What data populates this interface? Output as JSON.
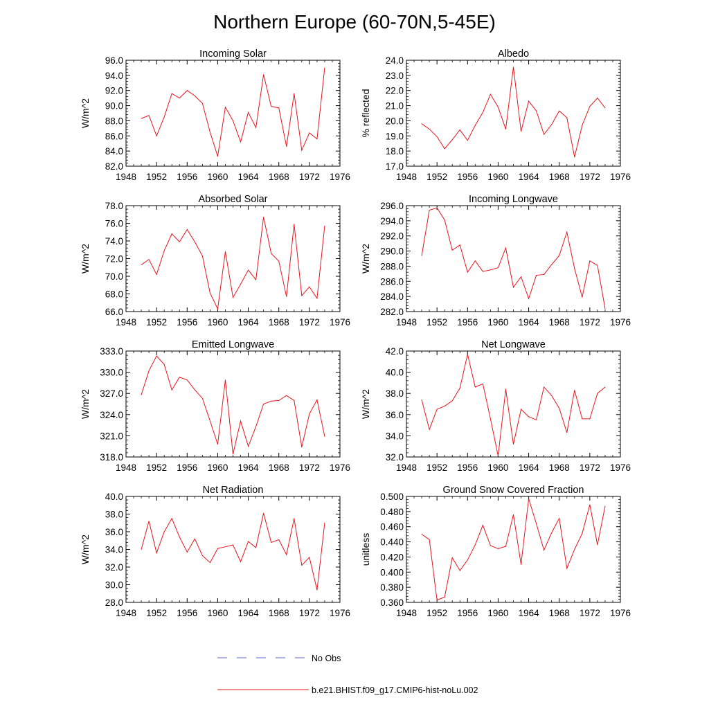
{
  "figure": {
    "title": "Northern Europe (60-70N,5-45E)"
  },
  "legend": {
    "items": [
      {
        "label": "No Obs",
        "color": "#5566cc",
        "style": "dashed"
      },
      {
        "label": "b.e21.BHIST.f09_g17.CMIP6-hist-noLu.002",
        "color": "#e8141e",
        "style": "solid"
      }
    ]
  },
  "chart_data": [
    {
      "type": "line",
      "title": "Incoming Solar",
      "ylabel": "W/m^2",
      "xlim": [
        1948,
        1976
      ],
      "xticks": [
        1948,
        1952,
        1956,
        1960,
        1964,
        1968,
        1972,
        1976
      ],
      "ylim": [
        82.0,
        96.0
      ],
      "yticks": [
        "82.0",
        "84.0",
        "86.0",
        "88.0",
        "90.0",
        "92.0",
        "94.0",
        "96.0"
      ],
      "ytick_values": [
        82,
        84,
        86,
        88,
        90,
        92,
        94,
        96
      ],
      "series": [
        {
          "name": "b.e21.BHIST.f09_g17.CMIP6-hist-noLu.002",
          "color": "#e8141e",
          "x": [
            1950,
            1951,
            1952,
            1953,
            1954,
            1955,
            1956,
            1957,
            1958,
            1959,
            1960,
            1961,
            1962,
            1963,
            1964,
            1965,
            1966,
            1967,
            1968,
            1969,
            1970,
            1971,
            1972,
            1973,
            1974
          ],
          "values": [
            88.3,
            88.7,
            86.0,
            88.5,
            91.6,
            91.0,
            92.0,
            91.3,
            90.3,
            86.5,
            83.3,
            89.8,
            88.0,
            85.2,
            89.1,
            87.1,
            94.1,
            89.9,
            89.7,
            84.6,
            91.6,
            84.1,
            86.4,
            85.6,
            95.0
          ]
        }
      ]
    },
    {
      "type": "line",
      "title": "Albedo",
      "ylabel": "% reflected",
      "xlim": [
        1948,
        1976
      ],
      "xticks": [
        1948,
        1952,
        1956,
        1960,
        1964,
        1968,
        1972,
        1976
      ],
      "ylim": [
        17.0,
        24.0
      ],
      "yticks": [
        "17.0",
        "18.0",
        "19.0",
        "20.0",
        "21.0",
        "22.0",
        "23.0",
        "24.0"
      ],
      "ytick_values": [
        17,
        18,
        19,
        20,
        21,
        22,
        23,
        24
      ],
      "series": [
        {
          "name": "b.e21.BHIST.f09_g17.CMIP6-hist-noLu.002",
          "color": "#e8141e",
          "x": [
            1950,
            1951,
            1952,
            1953,
            1954,
            1955,
            1956,
            1957,
            1958,
            1959,
            1960,
            1961,
            1962,
            1963,
            1964,
            1965,
            1966,
            1967,
            1968,
            1969,
            1970,
            1971,
            1972,
            1973,
            1974
          ],
          "values": [
            19.8,
            19.45,
            18.95,
            18.15,
            18.75,
            19.4,
            18.7,
            19.7,
            20.55,
            21.75,
            20.9,
            19.45,
            23.55,
            19.3,
            21.3,
            20.65,
            19.1,
            19.75,
            20.65,
            20.2,
            17.6,
            19.7,
            20.95,
            21.5,
            20.85
          ]
        }
      ]
    },
    {
      "type": "line",
      "title": "Absorbed Solar",
      "ylabel": "W/m^2",
      "xlim": [
        1948,
        1976
      ],
      "xticks": [
        1948,
        1952,
        1956,
        1960,
        1964,
        1968,
        1972,
        1976
      ],
      "ylim": [
        66.0,
        78.0
      ],
      "yticks": [
        "66.0",
        "68.0",
        "70.0",
        "72.0",
        "74.0",
        "76.0",
        "78.0"
      ],
      "ytick_values": [
        66,
        68,
        70,
        72,
        74,
        76,
        78
      ],
      "series": [
        {
          "name": "b.e21.BHIST.f09_g17.CMIP6-hist-noLu.002",
          "color": "#e8141e",
          "x": [
            1950,
            1951,
            1952,
            1953,
            1954,
            1955,
            1956,
            1957,
            1958,
            1959,
            1960,
            1961,
            1962,
            1963,
            1964,
            1965,
            1966,
            1967,
            1968,
            1969,
            1970,
            1971,
            1972,
            1973,
            1974
          ],
          "values": [
            71.3,
            71.9,
            70.2,
            72.9,
            74.8,
            73.9,
            75.3,
            73.9,
            72.3,
            68.1,
            66.3,
            72.8,
            67.6,
            69.1,
            70.7,
            69.6,
            76.7,
            72.6,
            71.7,
            67.7,
            75.9,
            67.8,
            68.8,
            67.5,
            75.7
          ]
        }
      ]
    },
    {
      "type": "line",
      "title": "Incoming Longwave",
      "ylabel": "W/m^2",
      "xlim": [
        1948,
        1976
      ],
      "xticks": [
        1948,
        1952,
        1956,
        1960,
        1964,
        1968,
        1972,
        1976
      ],
      "ylim": [
        282.0,
        296.0
      ],
      "yticks": [
        "282.0",
        "284.0",
        "286.0",
        "288.0",
        "290.0",
        "292.0",
        "294.0",
        "296.0"
      ],
      "ytick_values": [
        282,
        284,
        286,
        288,
        290,
        292,
        294,
        296
      ],
      "series": [
        {
          "name": "b.e21.BHIST.f09_g17.CMIP6-hist-noLu.002",
          "color": "#e8141e",
          "x": [
            1950,
            1951,
            1952,
            1953,
            1954,
            1955,
            1956,
            1957,
            1958,
            1959,
            1960,
            1961,
            1962,
            1963,
            1964,
            1965,
            1966,
            1967,
            1968,
            1969,
            1970,
            1971,
            1972,
            1973,
            1974
          ],
          "values": [
            289.4,
            295.4,
            295.7,
            294.1,
            290.1,
            290.8,
            287.2,
            288.7,
            287.3,
            287.5,
            287.8,
            290.4,
            285.2,
            286.6,
            283.7,
            286.8,
            286.9,
            288.2,
            289.4,
            292.5,
            287.7,
            283.9,
            288.7,
            288.1,
            282.4
          ]
        }
      ]
    },
    {
      "type": "line",
      "title": "Emitted Longwave",
      "ylabel": "W/m^2",
      "xlim": [
        1948,
        1976
      ],
      "xticks": [
        1948,
        1952,
        1956,
        1960,
        1964,
        1968,
        1972,
        1976
      ],
      "ylim": [
        318.0,
        333.0
      ],
      "yticks": [
        "318.0",
        "321.0",
        "324.0",
        "327.0",
        "330.0",
        "333.0"
      ],
      "ytick_values": [
        318,
        321,
        324,
        327,
        330,
        333
      ],
      "series": [
        {
          "name": "b.e21.BHIST.f09_g17.CMIP6-hist-noLu.002",
          "color": "#e8141e",
          "x": [
            1950,
            1951,
            1952,
            1953,
            1954,
            1955,
            1956,
            1957,
            1958,
            1959,
            1960,
            1961,
            1962,
            1963,
            1964,
            1965,
            1966,
            1967,
            1968,
            1969,
            1970,
            1971,
            1972,
            1973,
            1974
          ],
          "values": [
            326.8,
            330.2,
            332.3,
            331.1,
            327.5,
            329.3,
            328.9,
            327.5,
            326.3,
            323.1,
            319.8,
            328.9,
            318.4,
            323.1,
            319.5,
            322.3,
            325.5,
            325.9,
            326.0,
            326.7,
            326.0,
            319.4,
            324.1,
            326.1,
            320.9
          ]
        }
      ]
    },
    {
      "type": "line",
      "title": "Net Longwave",
      "ylabel": "W/m^2",
      "xlim": [
        1948,
        1976
      ],
      "xticks": [
        1948,
        1952,
        1956,
        1960,
        1964,
        1968,
        1972,
        1976
      ],
      "ylim": [
        32.0,
        42.0
      ],
      "yticks": [
        "32.0",
        "34.0",
        "36.0",
        "38.0",
        "40.0",
        "42.0"
      ],
      "ytick_values": [
        32,
        34,
        36,
        38,
        40,
        42
      ],
      "series": [
        {
          "name": "b.e21.BHIST.f09_g17.CMIP6-hist-noLu.002",
          "color": "#e8141e",
          "x": [
            1950,
            1951,
            1952,
            1953,
            1954,
            1955,
            1956,
            1957,
            1958,
            1959,
            1960,
            1961,
            1962,
            1963,
            1964,
            1965,
            1966,
            1967,
            1968,
            1969,
            1970,
            1971,
            1972,
            1973,
            1974
          ],
          "values": [
            37.4,
            34.6,
            36.5,
            36.8,
            37.3,
            38.5,
            41.7,
            38.6,
            38.9,
            35.6,
            32.1,
            38.4,
            33.2,
            36.5,
            35.8,
            35.5,
            38.6,
            37.8,
            36.6,
            34.3,
            38.3,
            35.6,
            35.6,
            38.0,
            38.6
          ]
        }
      ]
    },
    {
      "type": "line",
      "title": "Net Radiation",
      "ylabel": "W/m^2",
      "xlim": [
        1948,
        1976
      ],
      "xticks": [
        1948,
        1952,
        1956,
        1960,
        1964,
        1968,
        1972,
        1976
      ],
      "ylim": [
        28.0,
        40.0
      ],
      "yticks": [
        "28.0",
        "30.0",
        "32.0",
        "34.0",
        "36.0",
        "38.0",
        "40.0"
      ],
      "ytick_values": [
        28,
        30,
        32,
        34,
        36,
        38,
        40
      ],
      "series": [
        {
          "name": "b.e21.BHIST.f09_g17.CMIP6-hist-noLu.002",
          "color": "#e8141e",
          "x": [
            1950,
            1951,
            1952,
            1953,
            1954,
            1955,
            1956,
            1957,
            1958,
            1959,
            1960,
            1961,
            1962,
            1963,
            1964,
            1965,
            1966,
            1967,
            1968,
            1969,
            1970,
            1971,
            1972,
            1973,
            1974
          ],
          "values": [
            34.0,
            37.2,
            33.6,
            36.0,
            37.5,
            35.4,
            33.7,
            35.2,
            33.3,
            32.5,
            34.1,
            34.3,
            34.5,
            32.6,
            34.9,
            34.2,
            38.1,
            34.8,
            35.1,
            33.4,
            37.5,
            32.2,
            33.1,
            29.4,
            37.0
          ]
        }
      ]
    },
    {
      "type": "line",
      "title": "Ground Snow Covered Fraction",
      "ylabel": "unitless",
      "xlim": [
        1948,
        1976
      ],
      "xticks": [
        1948,
        1952,
        1956,
        1960,
        1964,
        1968,
        1972,
        1976
      ],
      "ylim": [
        0.36,
        0.5
      ],
      "yticks": [
        "0.360",
        "0.380",
        "0.400",
        "0.420",
        "0.440",
        "0.460",
        "0.480",
        "0.500"
      ],
      "ytick_values": [
        0.36,
        0.38,
        0.4,
        0.42,
        0.44,
        0.46,
        0.48,
        0.5
      ],
      "series": [
        {
          "name": "b.e21.BHIST.f09_g17.CMIP6-hist-noLu.002",
          "color": "#e8141e",
          "x": [
            1950,
            1951,
            1952,
            1953,
            1954,
            1955,
            1956,
            1957,
            1958,
            1959,
            1960,
            1961,
            1962,
            1963,
            1964,
            1965,
            1966,
            1967,
            1968,
            1969,
            1970,
            1971,
            1972,
            1973,
            1974
          ],
          "values": [
            0.45,
            0.443,
            0.363,
            0.367,
            0.419,
            0.402,
            0.416,
            0.436,
            0.462,
            0.435,
            0.431,
            0.434,
            0.476,
            0.41,
            0.497,
            0.464,
            0.429,
            0.452,
            0.471,
            0.405,
            0.43,
            0.451,
            0.489,
            0.436,
            0.487
          ]
        }
      ]
    }
  ]
}
